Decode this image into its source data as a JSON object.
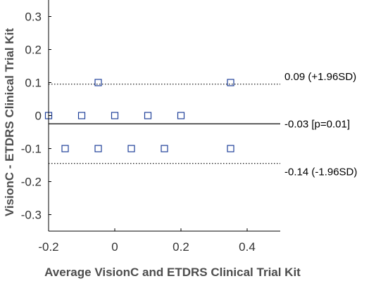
{
  "chart_data": {
    "type": "scatter",
    "title": "",
    "xlabel": "Average VisionC and ETDRS Clinical Trial Kit",
    "ylabel": "VisionC - ETDRS Clinical Trial Kit",
    "xlim": [
      -0.2,
      0.5
    ],
    "ylim": [
      -0.35,
      0.35
    ],
    "xticks": [
      -0.2,
      0,
      0.2,
      0.4
    ],
    "xtick_labels": [
      "-0.2",
      "0",
      "0.2",
      "0.4"
    ],
    "yticks": [
      0.3,
      0.2,
      0.1,
      0,
      -0.1,
      -0.2,
      -0.3
    ],
    "ytick_labels": [
      "0.3",
      "0.2",
      "0.1",
      "0",
      "-0.1",
      "-0.2",
      "-0.3"
    ],
    "grid": false,
    "marker": "open-square",
    "marker_color": "#1f3f99",
    "points": [
      {
        "x": -0.2,
        "y": 0
      },
      {
        "x": -0.1,
        "y": 0
      },
      {
        "x": 0,
        "y": 0
      },
      {
        "x": 0.1,
        "y": 0
      },
      {
        "x": 0.2,
        "y": 0
      },
      {
        "x": -0.05,
        "y": 0.1
      },
      {
        "x": 0.35,
        "y": 0.1
      },
      {
        "x": -0.15,
        "y": -0.1
      },
      {
        "x": -0.05,
        "y": -0.1
      },
      {
        "x": 0.05,
        "y": -0.1
      },
      {
        "x": 0.15,
        "y": -0.1
      },
      {
        "x": 0.35,
        "y": -0.1
      }
    ],
    "reference_lines": [
      {
        "y": 0.095,
        "style": "dotted",
        "label": "0.09 (+1.96SD)"
      },
      {
        "y": -0.025,
        "style": "solid",
        "label": "-0.03 [p=0.01]"
      },
      {
        "y": -0.145,
        "style": "dotted",
        "label": "-0.14 (-1.96SD)"
      }
    ]
  }
}
